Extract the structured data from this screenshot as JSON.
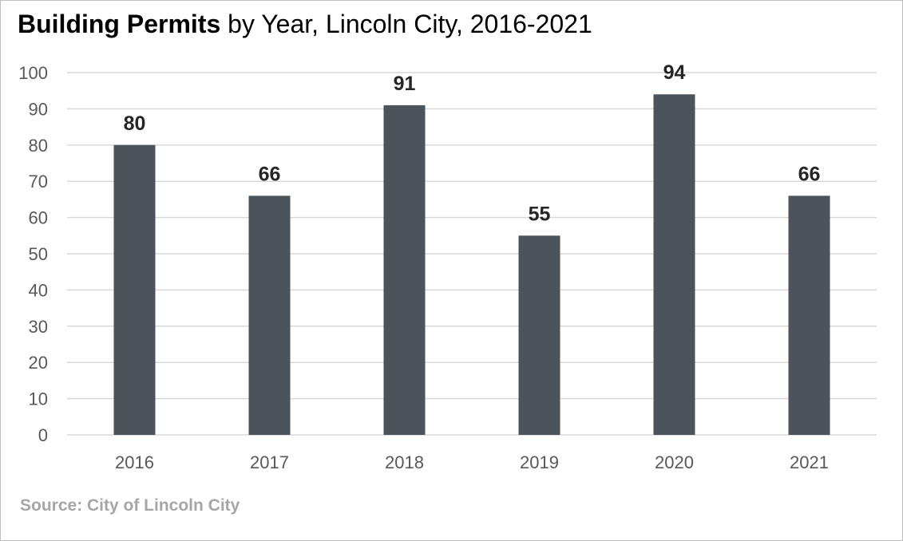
{
  "title": {
    "bold_part": "Building Permits",
    "rest_part": " by Year, Lincoln City, 2016-2021"
  },
  "source": "Source: City of Lincoln City",
  "colors": {
    "bar": "#4a545a",
    "grid": "#d9d9d9",
    "axis_text": "#595959",
    "label_text": "#262626"
  },
  "chart_data": {
    "type": "bar",
    "title": "Building Permits by Year, Lincoln City, 2016-2021",
    "xlabel": "",
    "ylabel": "",
    "categories": [
      "2016",
      "2017",
      "2018",
      "2019",
      "2020",
      "2021"
    ],
    "values": [
      80,
      66,
      91,
      55,
      94,
      66
    ],
    "ylim": [
      0,
      100
    ],
    "yticks": [
      0,
      10,
      20,
      30,
      40,
      50,
      60,
      70,
      80,
      90,
      100
    ],
    "grid": true,
    "legend": "none",
    "data_labels": true
  }
}
